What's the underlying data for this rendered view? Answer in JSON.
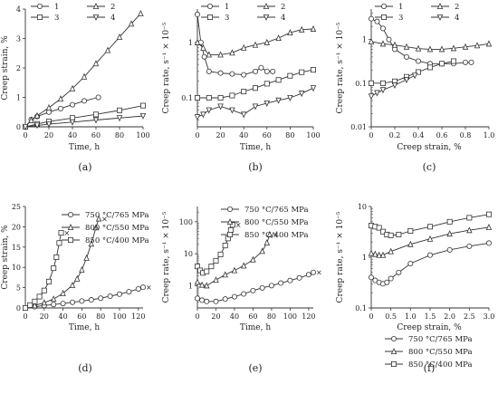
{
  "chart_data": [
    {
      "id": "a",
      "caption": "(a)",
      "type": "line",
      "xlabel": "Time, h",
      "ylabel": "Creep strain, %",
      "xlim": [
        0,
        100
      ],
      "ylim": [
        0,
        4
      ],
      "xticks": [
        0,
        20,
        40,
        60,
        80,
        100
      ],
      "yticks": [
        0,
        1,
        2,
        3,
        4
      ],
      "xtick_labels": [
        "0",
        "20",
        "40",
        "60",
        "80",
        "100"
      ],
      "ytick_labels": [
        "0",
        "1",
        "2",
        "3",
        "4"
      ],
      "legend_position": "top",
      "legend_columns": 2,
      "series": [
        {
          "name": "1",
          "marker": "circle",
          "x": [
            0,
            5,
            10,
            20,
            30,
            40,
            50,
            62
          ],
          "y": [
            0,
            0.25,
            0.35,
            0.5,
            0.62,
            0.75,
            0.88,
            1.0
          ]
        },
        {
          "name": "2",
          "marker": "triangle",
          "x": [
            0,
            5,
            10,
            20,
            30,
            40,
            50,
            60,
            70,
            80,
            90,
            98
          ],
          "y": [
            0,
            0.22,
            0.38,
            0.65,
            0.95,
            1.3,
            1.7,
            2.15,
            2.6,
            3.05,
            3.5,
            3.85
          ]
        },
        {
          "name": "3",
          "marker": "square",
          "x": [
            0,
            10,
            20,
            40,
            60,
            80,
            100
          ],
          "y": [
            0,
            0.1,
            0.18,
            0.3,
            0.42,
            0.56,
            0.72
          ]
        },
        {
          "name": "4",
          "marker": "down-triangle",
          "x": [
            0,
            10,
            20,
            40,
            60,
            80,
            100
          ],
          "y": [
            0,
            0.05,
            0.09,
            0.16,
            0.23,
            0.3,
            0.37
          ]
        }
      ]
    },
    {
      "id": "b",
      "caption": "(b)",
      "type": "line",
      "xlabel": "Time, h",
      "ylabel": "Creep rate, s⁻¹ × 10⁻⁵",
      "xlim": [
        0,
        100
      ],
      "ylim": [
        0.03,
        4
      ],
      "yscale": "log",
      "xticks": [
        0,
        20,
        40,
        60,
        80,
        100
      ],
      "yticks": [
        0.1,
        1
      ],
      "xtick_labels": [
        "0",
        "20",
        "40",
        "60",
        "80",
        "100"
      ],
      "ytick_labels": [
        "0.1",
        "1"
      ],
      "legend_position": "top",
      "legend_columns": 2,
      "series": [
        {
          "name": "1",
          "marker": "circle",
          "x": [
            0,
            3,
            6,
            10,
            20,
            30,
            40,
            50,
            55,
            60,
            65
          ],
          "y": [
            3.2,
            1.0,
            0.55,
            0.3,
            0.28,
            0.27,
            0.26,
            0.3,
            0.35,
            0.3,
            0.3
          ]
        },
        {
          "name": "2",
          "marker": "triangle",
          "x": [
            0,
            5,
            10,
            20,
            30,
            40,
            50,
            60,
            70,
            80,
            90,
            100
          ],
          "y": [
            1.0,
            0.8,
            0.6,
            0.6,
            0.65,
            0.8,
            0.9,
            1.0,
            1.2,
            1.5,
            1.7,
            1.75
          ]
        },
        {
          "name": "3",
          "marker": "square",
          "x": [
            0,
            10,
            20,
            30,
            40,
            50,
            60,
            70,
            80,
            90,
            100
          ],
          "y": [
            0.1,
            0.1,
            0.1,
            0.11,
            0.13,
            0.15,
            0.18,
            0.21,
            0.25,
            0.29,
            0.32
          ]
        },
        {
          "name": "4",
          "marker": "down-triangle",
          "x": [
            0,
            5,
            10,
            20,
            30,
            40,
            50,
            60,
            70,
            80,
            90,
            100
          ],
          "y": [
            0.045,
            0.05,
            0.06,
            0.07,
            0.06,
            0.05,
            0.07,
            0.08,
            0.09,
            0.1,
            0.12,
            0.15
          ]
        }
      ]
    },
    {
      "id": "c",
      "caption": "(c)",
      "type": "line",
      "xlabel": "Creep strain, %",
      "ylabel": "Creep rate, s⁻¹ × 10⁻⁵",
      "xlim": [
        0,
        1.0
      ],
      "ylim": [
        0.01,
        5
      ],
      "yscale": "log",
      "xticks": [
        0,
        0.2,
        0.4,
        0.6,
        0.8,
        1.0
      ],
      "yticks": [
        0.01,
        0.1,
        1
      ],
      "xtick_labels": [
        "0",
        "0.2",
        "0.4",
        "0.6",
        "0.8",
        "1.0"
      ],
      "ytick_labels": [
        "0.01",
        "0.1",
        "1"
      ],
      "legend_position": "top",
      "legend_columns": 2,
      "series": [
        {
          "name": "1",
          "marker": "circle",
          "x": [
            0,
            0.05,
            0.1,
            0.15,
            0.2,
            0.3,
            0.4,
            0.5,
            0.6,
            0.7,
            0.8,
            0.85
          ],
          "y": [
            3.0,
            2.6,
            1.8,
            1.0,
            0.6,
            0.4,
            0.32,
            0.28,
            0.28,
            0.28,
            0.3,
            0.3
          ]
        },
        {
          "name": "2",
          "marker": "triangle",
          "x": [
            0,
            0.1,
            0.2,
            0.3,
            0.4,
            0.5,
            0.6,
            0.7,
            0.8,
            0.9,
            1.0
          ],
          "y": [
            0.9,
            0.8,
            0.75,
            0.68,
            0.62,
            0.6,
            0.6,
            0.63,
            0.68,
            0.73,
            0.8
          ]
        },
        {
          "name": "3",
          "marker": "square",
          "x": [
            0,
            0.1,
            0.2,
            0.3,
            0.4,
            0.5,
            0.6,
            0.7
          ],
          "y": [
            0.1,
            0.1,
            0.11,
            0.14,
            0.18,
            0.23,
            0.28,
            0.32
          ]
        },
        {
          "name": "4",
          "marker": "down-triangle",
          "x": [
            0,
            0.05,
            0.1,
            0.2,
            0.3,
            0.37
          ],
          "y": [
            0.05,
            0.06,
            0.07,
            0.09,
            0.12,
            0.15
          ]
        }
      ]
    },
    {
      "id": "d",
      "caption": "(d)",
      "type": "line",
      "xlabel": "Time, h",
      "ylabel": "Creep strain, %",
      "xlim": [
        0,
        125
      ],
      "ylim": [
        0,
        25
      ],
      "xticks": [
        0,
        20,
        40,
        60,
        80,
        100,
        120
      ],
      "yticks": [
        0,
        5,
        10,
        15,
        20,
        25
      ],
      "xtick_labels": [
        "0",
        "20",
        "40",
        "60",
        "80",
        "100",
        "120"
      ],
      "ytick_labels": [
        "0",
        "5",
        "10",
        "15",
        "20",
        "25"
      ],
      "legend_position": "top-left",
      "series": [
        {
          "name": "750 °C/765 MPa",
          "marker": "circle",
          "x": [
            0,
            10,
            20,
            30,
            40,
            50,
            60,
            70,
            80,
            90,
            100,
            110,
            120,
            125
          ],
          "y": [
            0,
            0.3,
            0.6,
            0.85,
            1.1,
            1.4,
            1.7,
            2.0,
            2.4,
            2.9,
            3.4,
            4.0,
            4.7,
            5.1
          ]
        },
        {
          "name": "800 °C/550 MPa",
          "marker": "triangle",
          "x": [
            0,
            10,
            20,
            30,
            40,
            50,
            55,
            60,
            65,
            70,
            75,
            78
          ],
          "y": [
            0,
            0.6,
            1.3,
            2.2,
            3.6,
            5.6,
            7.2,
            9.4,
            12.3,
            15.8,
            19.8,
            22.0
          ]
        },
        {
          "name": "850 °C/400 MPa",
          "marker": "square",
          "x": [
            0,
            5,
            10,
            15,
            20,
            25,
            30,
            33,
            36,
            38
          ],
          "y": [
            0,
            0.7,
            1.6,
            2.8,
            4.3,
            6.5,
            9.8,
            12.5,
            16.0,
            18.5
          ]
        }
      ]
    },
    {
      "id": "e",
      "caption": "(e)",
      "type": "line",
      "xlabel": "Time, h",
      "ylabel": "Creep rate, s⁻¹ × 10⁻⁵",
      "xlim": [
        0,
        125
      ],
      "ylim": [
        0.2,
        300
      ],
      "yscale": "log",
      "xticks": [
        0,
        20,
        40,
        60,
        80,
        100,
        120
      ],
      "yticks": [
        1,
        10,
        100
      ],
      "xtick_labels": [
        "0",
        "20",
        "40",
        "60",
        "80",
        "100",
        "120"
      ],
      "ytick_labels": [
        "1",
        "10",
        "100"
      ],
      "legend_position": "top-left",
      "series": [
        {
          "name": "750 °C/765 MPa",
          "marker": "circle",
          "x": [
            0,
            5,
            10,
            20,
            30,
            40,
            50,
            60,
            70,
            80,
            90,
            100,
            110,
            120,
            125
          ],
          "y": [
            0.4,
            0.35,
            0.32,
            0.32,
            0.38,
            0.45,
            0.55,
            0.7,
            0.85,
            1.0,
            1.2,
            1.45,
            1.75,
            2.2,
            2.6
          ]
        },
        {
          "name": "800 °C/550 MPa",
          "marker": "triangle",
          "x": [
            0,
            5,
            10,
            20,
            30,
            40,
            50,
            60,
            70,
            75,
            78
          ],
          "y": [
            1.3,
            1.05,
            1.0,
            1.5,
            2.2,
            3.0,
            4.2,
            6.5,
            12.0,
            22.0,
            40.0
          ]
        },
        {
          "name": "850 °C/400 MPa",
          "marker": "square",
          "x": [
            0,
            3,
            6,
            10,
            15,
            20,
            25,
            30,
            33,
            36,
            38
          ],
          "y": [
            4.0,
            3.0,
            2.5,
            2.8,
            4.0,
            6.0,
            9.5,
            18.0,
            30.0,
            55.0,
            80.0
          ]
        }
      ]
    },
    {
      "id": "f",
      "caption": "(f)",
      "type": "line",
      "xlabel": "Creep strain, %",
      "ylabel": "Creep rate, s⁻¹ × 10⁻⁵",
      "xlim": [
        0,
        3.0
      ],
      "ylim": [
        0.1,
        10
      ],
      "yscale": "log",
      "xticks": [
        0,
        0.5,
        1.0,
        1.5,
        2.0,
        2.5,
        3.0
      ],
      "yticks": [
        0.1,
        1,
        10
      ],
      "xtick_labels": [
        "0",
        "0.5",
        "1.0",
        "1.5",
        "2.0",
        "2.5",
        "3.0"
      ],
      "ytick_labels": [
        "0.1",
        "1",
        "10"
      ],
      "legend_position": "bottom-right",
      "series": [
        {
          "name": "750 °C/765 MPa",
          "marker": "circle",
          "x": [
            0,
            0.1,
            0.2,
            0.3,
            0.4,
            0.5,
            0.7,
            1.0,
            1.5,
            2.0,
            2.5,
            3.0
          ],
          "y": [
            0.4,
            0.35,
            0.32,
            0.3,
            0.32,
            0.38,
            0.5,
            0.75,
            1.1,
            1.4,
            1.65,
            1.9
          ]
        },
        {
          "name": "800 °C/550 MPa",
          "marker": "triangle",
          "x": [
            0,
            0.1,
            0.2,
            0.3,
            0.5,
            1.0,
            1.5,
            2.0,
            2.5,
            3.0
          ],
          "y": [
            1.2,
            1.15,
            1.1,
            1.1,
            1.3,
            1.8,
            2.3,
            2.9,
            3.4,
            3.9
          ]
        },
        {
          "name": "850 °C/400 MPa",
          "marker": "square",
          "x": [
            0,
            0.1,
            0.2,
            0.3,
            0.4,
            0.5,
            0.7,
            1.0,
            1.5,
            2.0,
            2.5,
            3.0
          ],
          "y": [
            4.2,
            4.0,
            3.8,
            3.2,
            2.8,
            2.7,
            2.8,
            3.3,
            4.0,
            5.0,
            6.0,
            7.0
          ]
        }
      ]
    }
  ]
}
